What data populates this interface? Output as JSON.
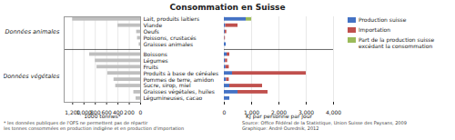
{
  "chart_data": [
    {
      "type": "bar",
      "orientation": "horizontal",
      "title": "Consommation en Suisse",
      "categories": [
        "Lait, produits laitiers",
        "Viande",
        "Oeufs",
        "Poissons, crustacés",
        "Graisses animales",
        "Boissons",
        "Légumes",
        "Fruits",
        "Produits à base de céréales",
        "Pommes de terre, amidon",
        "Sucre, sirop, miel",
        "Graisses végétales, huiles",
        "Légumineuses, cacao"
      ],
      "sections": [
        {
          "name": "Données animales",
          "categories": [
            "Lait, produits laitiers",
            "Viande",
            "Oeufs",
            "Poissons, crustacés",
            "Graisses animales"
          ]
        },
        {
          "name": "Données végétales",
          "categories": [
            "Boissons",
            "Légumes",
            "Fruits",
            "Produits à base de céréales",
            "Pommes de terre, amidon",
            "Sucre, sirop, miel",
            "Graisses végétales, huiles",
            "Légumineuses, cacao"
          ]
        }
      ],
      "series": [
        {
          "color": "#BFBFBF",
          "values": [
            1200,
            400,
            70,
            55,
            25,
            900,
            800,
            770,
            580,
            470,
            440,
            120,
            80
          ]
        }
      ],
      "xlabel": "1000 tonnes*",
      "xlim": [
        1350,
        0
      ],
      "xticks": [
        0,
        200,
        400,
        600,
        800,
        1000,
        1200
      ],
      "grid": true,
      "footnote": "* les données publiques de l'OFS ne permettent pas de répartir\nles tonnes consommées en production indigène et en production d'importation",
      "source": "Source: Office Fédéral de la Statistique, Union Suisse des Paysans, 2009\nGraphique: André Ourednik, 2012"
    },
    {
      "type": "bar",
      "orientation": "horizontal",
      "stacked": true,
      "tick_labels": "x",
      "categories": [
        "Lait, produits laitiers",
        "Viande",
        "Oeufs",
        "Poissons, crustacés",
        "Graisses animales",
        "Boissons",
        "Légumes",
        "Fruits",
        "Produits à base de céréales",
        "Pommes de terre, amidon",
        "Sucre, sirop, miel",
        "Graisses végétales, huiles",
        "Légumineuses, cacao"
      ],
      "series": [
        {
          "name": "Production suisse",
          "color": "#4472C4",
          "values": [
            800,
            50,
            30,
            15,
            70,
            100,
            40,
            60,
            300,
            80,
            200,
            500,
            200
          ]
        },
        {
          "name": "Importation",
          "color": "#C0504D",
          "values": [
            0,
            450,
            60,
            25,
            0,
            100,
            80,
            120,
            2700,
            100,
            1200,
            1100,
            0
          ]
        },
        {
          "name": "Part de la production suisse\nexcédant la consommation",
          "color": "#9BBB59",
          "values": [
            200,
            0,
            0,
            0,
            0,
            0,
            0,
            0,
            0,
            0,
            0,
            0,
            0
          ]
        }
      ],
      "xlabel": "KJ par personne par jour",
      "xlim": [
        0,
        4000
      ],
      "xticks": [
        0,
        1000,
        2000,
        3000,
        4000
      ],
      "grid": true,
      "legend": "right"
    }
  ]
}
